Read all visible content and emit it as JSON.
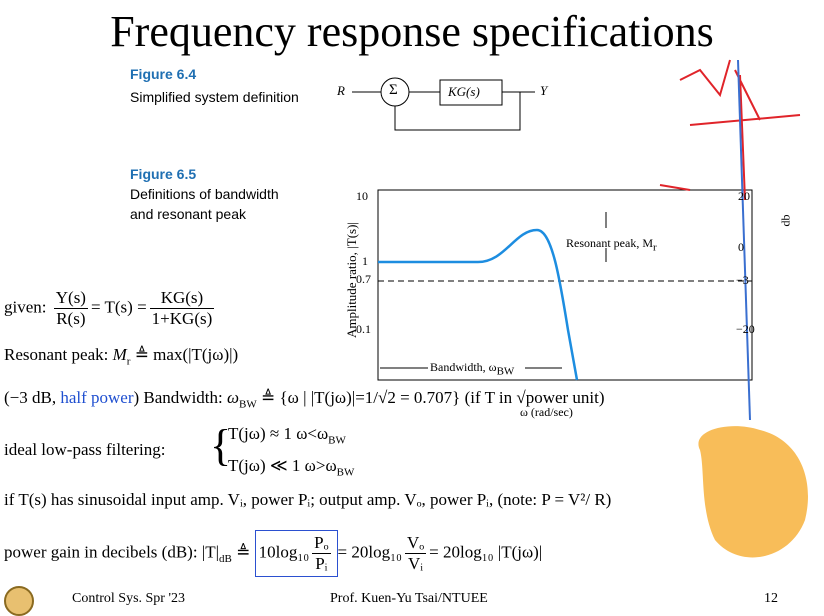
{
  "title": "Frequency response specifications",
  "figure_6_4": {
    "label": "Figure 6.4",
    "caption": "Simplified system definition",
    "input": "R",
    "sum": "Σ",
    "block": "KG(s)",
    "output": "Y"
  },
  "figure_6_5": {
    "label": "Figure 6.5",
    "caption_lines": [
      "Definitions of bandwidth",
      "and resonant peak"
    ],
    "y_axis_label": "Amplitude ratio, |T(s)|",
    "y_ticks": [
      "10",
      "1",
      "0.7",
      "0.1"
    ],
    "db_label": "db",
    "db_ticks": [
      "20",
      "0",
      "−3",
      "−20"
    ],
    "resonant_label": "Resonant peak, M",
    "resonant_sub": "r",
    "bandwidth_label": "Bandwidth, ω",
    "bandwidth_sub": "BW",
    "x_axis_label": "ω (rad/sec)"
  },
  "equations": {
    "given": {
      "lead": "given:",
      "num1": "Y(s)",
      "den1": "R(s)",
      "mid": "= T(s) =",
      "num2": "KG(s)",
      "den2": "1+KG(s)"
    },
    "resonant": {
      "lead": "Resonant peak: ",
      "sym": "M",
      "sub": "r",
      "rest": " ≜ max(|T(jω)|)"
    },
    "bandwidth": {
      "lead": "(−3 dB, ",
      "highlight": "half power",
      "mid": ") Bandwidth: ",
      "sym": "ω",
      "sub": "BW",
      "rest": " ≜ {ω | |T(jω)|=1/√2 = 0.707} (if T in √power unit)"
    },
    "lowpass": {
      "lead": "ideal low-pass filtering:",
      "case1": "T(jω) ≈ 1    ω<ω",
      "case2": "T(jω) ≪ 1    ω>ω",
      "sub": "BW"
    },
    "sinusoid": "if T(s) has sinusoidal input amp. Vᵢ, power Pᵢ; output amp. Vₒ, power Pᵢ, (note: P = V²/ R)",
    "power_gain": {
      "lead": "power gain in decibels (dB): |T|",
      "lead_sub": "dB",
      "def": " ≜ ",
      "box_pre": "10log₁₀",
      "num1": "Pₒ",
      "den1": "Pᵢ",
      "mid": "= 20log₁₀",
      "num2": "Vₒ",
      "den2": "Vᵢ",
      "rest": "= 20log₁₀ |T(jω)|"
    }
  },
  "footer": {
    "course": "Control Sys. Spr '23",
    "author": "Prof. Kuen-Yu Tsai/NTUEE",
    "page": "12"
  }
}
